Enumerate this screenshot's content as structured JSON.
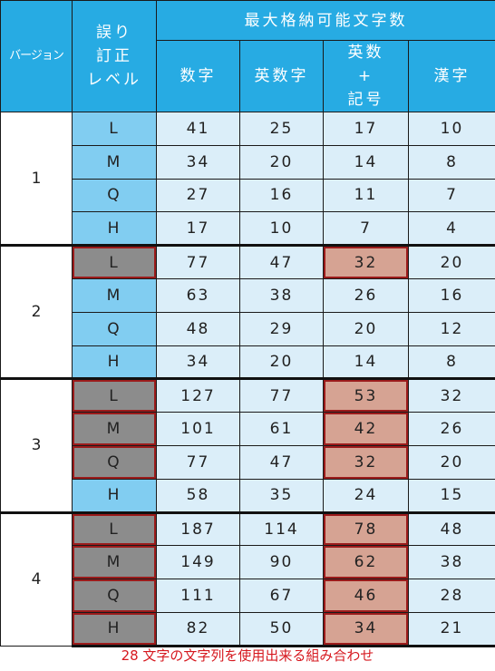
{
  "headers": {
    "version": "バージョン",
    "ecc_level": "誤り\n訂正\nレベル",
    "max_chars": "最大格納可能文字数",
    "numeric": "数字",
    "alphanumeric": "英数字",
    "alnum_symbols": "英数\n+\n記号",
    "kanji": "漢字"
  },
  "rows": [
    {
      "version": "1",
      "level": "L",
      "numeric": "41",
      "alphanumeric": "25",
      "alnum_symbols": "17",
      "kanji": "10",
      "highlight": false
    },
    {
      "version": "1",
      "level": "M",
      "numeric": "34",
      "alphanumeric": "20",
      "alnum_symbols": "14",
      "kanji": "8",
      "highlight": false
    },
    {
      "version": "1",
      "level": "Q",
      "numeric": "27",
      "alphanumeric": "16",
      "alnum_symbols": "11",
      "kanji": "7",
      "highlight": false
    },
    {
      "version": "1",
      "level": "H",
      "numeric": "17",
      "alphanumeric": "10",
      "alnum_symbols": "7",
      "kanji": "4",
      "highlight": false
    },
    {
      "version": "2",
      "level": "L",
      "numeric": "77",
      "alphanumeric": "47",
      "alnum_symbols": "32",
      "kanji": "20",
      "highlight": true
    },
    {
      "version": "2",
      "level": "M",
      "numeric": "63",
      "alphanumeric": "38",
      "alnum_symbols": "26",
      "kanji": "16",
      "highlight": false
    },
    {
      "version": "2",
      "level": "Q",
      "numeric": "48",
      "alphanumeric": "29",
      "alnum_symbols": "20",
      "kanji": "12",
      "highlight": false
    },
    {
      "version": "2",
      "level": "H",
      "numeric": "34",
      "alphanumeric": "20",
      "alnum_symbols": "14",
      "kanji": "8",
      "highlight": false
    },
    {
      "version": "3",
      "level": "L",
      "numeric": "127",
      "alphanumeric": "77",
      "alnum_symbols": "53",
      "kanji": "32",
      "highlight": true
    },
    {
      "version": "3",
      "level": "M",
      "numeric": "101",
      "alphanumeric": "61",
      "alnum_symbols": "42",
      "kanji": "26",
      "highlight": true
    },
    {
      "version": "3",
      "level": "Q",
      "numeric": "77",
      "alphanumeric": "47",
      "alnum_symbols": "32",
      "kanji": "20",
      "highlight": true
    },
    {
      "version": "3",
      "level": "H",
      "numeric": "58",
      "alphanumeric": "35",
      "alnum_symbols": "24",
      "kanji": "15",
      "highlight": false
    },
    {
      "version": "4",
      "level": "L",
      "numeric": "187",
      "alphanumeric": "114",
      "alnum_symbols": "78",
      "kanji": "48",
      "highlight": true
    },
    {
      "version": "4",
      "level": "M",
      "numeric": "149",
      "alphanumeric": "90",
      "alnum_symbols": "62",
      "kanji": "38",
      "highlight": true
    },
    {
      "version": "4",
      "level": "Q",
      "numeric": "111",
      "alphanumeric": "67",
      "alnum_symbols": "46",
      "kanji": "28",
      "highlight": true
    },
    {
      "version": "4",
      "level": "H",
      "numeric": "82",
      "alphanumeric": "50",
      "alnum_symbols": "34",
      "kanji": "21",
      "highlight": true
    }
  ],
  "footnote": "28 文字の文字列を使用出来る組み合わせ",
  "colors": {
    "header_bg": "#27abe3",
    "level_bg": "#81cdf1",
    "cell_bg": "#dbeef9",
    "highlight_level_bg": "#8c8c8c",
    "highlight_value_bg": "#d6a393",
    "highlight_border": "#9b1b1b",
    "footnote_text": "#d6181f"
  }
}
